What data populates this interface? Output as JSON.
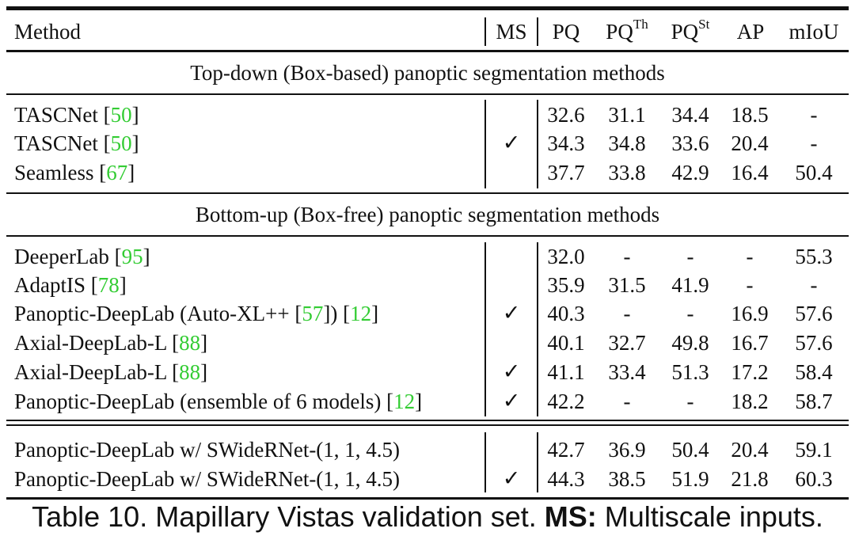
{
  "header": {
    "method": "Method",
    "ms": "MS",
    "pq": "PQ",
    "pq_th_base": "PQ",
    "pq_th_sup": "Th",
    "pq_st_base": "PQ",
    "pq_st_sup": "St",
    "ap": "AP",
    "miou": "mIoU"
  },
  "sections": {
    "top_down": "Top-down (Box-based) panoptic segmentation methods",
    "bottom_up": "Bottom-up (Box-free) panoptic segmentation methods"
  },
  "rows": [
    {
      "name": "TASCNet ",
      "cite": "50",
      "cite2": "",
      "ms": "",
      "pq": "32.6",
      "pq_th": "31.1",
      "pq_st": "34.4",
      "ap": "18.5",
      "miou": "-"
    },
    {
      "name": "TASCNet ",
      "cite": "50",
      "cite2": "",
      "ms": "✓",
      "pq": "34.3",
      "pq_th": "34.8",
      "pq_st": "33.6",
      "ap": "20.4",
      "miou": "-"
    },
    {
      "name": "Seamless ",
      "cite": "67",
      "cite2": "",
      "ms": "",
      "pq": "37.7",
      "pq_th": "33.8",
      "pq_st": "42.9",
      "ap": "16.4",
      "miou": "50.4"
    },
    {
      "name": "DeeperLab ",
      "cite": "95",
      "cite2": "",
      "ms": "",
      "pq": "32.0",
      "pq_th": "-",
      "pq_st": "-",
      "ap": "-",
      "miou": "55.3"
    },
    {
      "name": "AdaptIS ",
      "cite": "78",
      "cite2": "",
      "ms": "",
      "pq": "35.9",
      "pq_th": "31.5",
      "pq_st": "41.9",
      "ap": "-",
      "miou": "-"
    },
    {
      "name": "Panoptic-DeepLab (Auto-XL++ ",
      "cite": "57",
      "cite2": "12",
      "ms": "✓",
      "pq": "40.3",
      "pq_th": "-",
      "pq_st": "-",
      "ap": "16.9",
      "miou": "57.6"
    },
    {
      "name": "Axial-DeepLab-L ",
      "cite": "88",
      "cite2": "",
      "ms": "",
      "pq": "40.1",
      "pq_th": "32.7",
      "pq_st": "49.8",
      "ap": "16.7",
      "miou": "57.6"
    },
    {
      "name": "Axial-DeepLab-L ",
      "cite": "88",
      "cite2": "",
      "ms": "✓",
      "pq": "41.1",
      "pq_th": "33.4",
      "pq_st": "51.3",
      "ap": "17.2",
      "miou": "58.4"
    },
    {
      "name": "Panoptic-DeepLab (ensemble of 6 models) ",
      "cite": "12",
      "cite2": "",
      "ms": "✓",
      "pq": "42.2",
      "pq_th": "-",
      "pq_st": "-",
      "ap": "18.2",
      "miou": "58.7"
    },
    {
      "name": "Panoptic-DeepLab w/ SWideRNet-(1, 1, 4.5)",
      "cite": "",
      "cite2": "",
      "ms": "",
      "pq": "42.7",
      "pq_th": "36.9",
      "pq_st": "50.4",
      "ap": "20.4",
      "miou": "59.1"
    },
    {
      "name": "Panoptic-DeepLab w/ SWideRNet-(1, 1, 4.5)",
      "cite": "",
      "cite2": "",
      "ms": "✓",
      "pq": "44.3",
      "pq_th": "38.5",
      "pq_st": "51.9",
      "ap": "21.8",
      "miou": "60.3"
    }
  ],
  "caption": {
    "prefix": "Table 10. Mapillary Vistas validation set. ",
    "bold": "MS:",
    "suffix": " Multiscale inputs."
  }
}
